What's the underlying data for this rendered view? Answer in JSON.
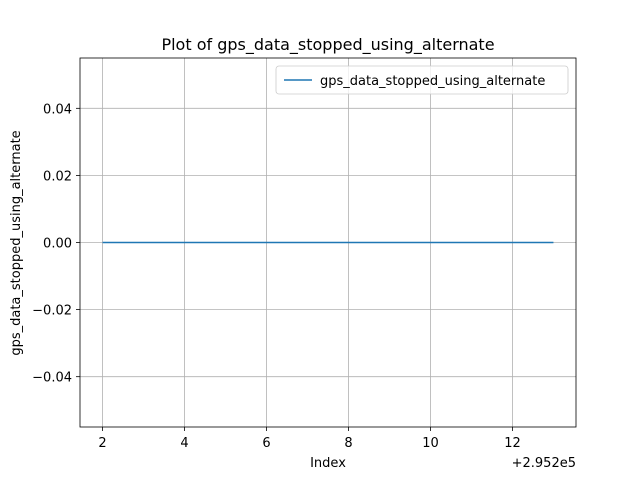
{
  "chart_data": {
    "type": "line",
    "title": "Plot of gps_data_stopped_using_alternate",
    "xlabel": "Index",
    "ylabel": "gps_data_stopped_using_alternate",
    "x_offset_label": "+2.952e5",
    "x_offset": 295200,
    "x": [
      295202,
      295213
    ],
    "series": [
      {
        "name": "gps_data_stopped_using_alternate",
        "values": [
          0,
          0
        ],
        "color": "#1f77b4"
      }
    ],
    "xlim": [
      295201.45,
      295213.55
    ],
    "ylim": [
      -0.055,
      0.055
    ],
    "x_ticks": [
      2,
      4,
      6,
      8,
      10,
      12
    ],
    "y_ticks": [
      -0.04,
      -0.02,
      0.0,
      0.02,
      0.04
    ],
    "x_tick_labels": [
      "2",
      "4",
      "6",
      "8",
      "10",
      "12"
    ],
    "y_tick_labels": [
      "−0.04",
      "−0.02",
      "0.00",
      "0.02",
      "0.04"
    ],
    "grid": true,
    "legend_position": "top-right"
  }
}
